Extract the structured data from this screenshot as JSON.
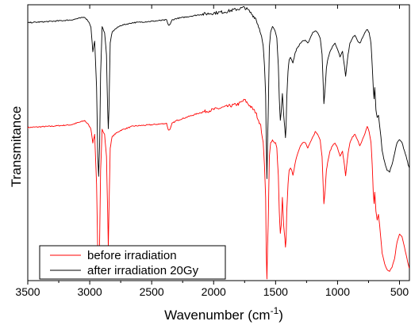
{
  "chart_data": {
    "type": "line",
    "title": "",
    "xlabel": "Wavenumber (cm",
    "xlabel_sup": "-1",
    "xlabel_close": ")",
    "ylabel": "Transmitance",
    "xlim": [
      3500,
      420
    ],
    "x_reversed": true,
    "ylim": [
      0,
      1
    ],
    "y_ticks_shown": false,
    "x_ticks": [
      "3500",
      "3000",
      "2500",
      "2000",
      "1500",
      "1000",
      "500"
    ],
    "x_tick_values": [
      3500,
      3000,
      2500,
      2000,
      1500,
      1000,
      500
    ],
    "grid": false,
    "legend_position": "bottom-left",
    "series": [
      {
        "name": "before irradiation",
        "color": "#ff0000",
        "x": [
          3500,
          3300,
          3150,
          3040,
          3010,
          2990,
          2975,
          2960,
          2945,
          2935,
          2928,
          2920,
          2912,
          2900,
          2880,
          2865,
          2855,
          2850,
          2845,
          2835,
          2820,
          2800,
          2750,
          2650,
          2500,
          2380,
          2365,
          2350,
          2335,
          2300,
          2100,
          1900,
          1800,
          1750,
          1720,
          1700,
          1660,
          1620,
          1600,
          1590,
          1580,
          1575,
          1570,
          1565,
          1560,
          1555,
          1550,
          1540,
          1525,
          1510,
          1500,
          1490,
          1478,
          1470,
          1462,
          1455,
          1445,
          1435,
          1425,
          1420,
          1415,
          1410,
          1400,
          1390,
          1380,
          1370,
          1360,
          1345,
          1330,
          1300,
          1280,
          1260,
          1240,
          1220,
          1200,
          1180,
          1160,
          1140,
          1125,
          1115,
          1110,
          1100,
          1090,
          1075,
          1060,
          1040,
          1020,
          1000,
          980,
          960,
          945,
          935,
          925,
          915,
          900,
          880,
          860,
          840,
          820,
          800,
          780,
          760,
          745,
          730,
          720,
          712,
          705,
          700,
          690,
          680,
          670,
          660,
          650,
          640,
          620,
          600,
          580,
          560,
          540,
          520,
          500,
          480,
          460,
          440,
          430,
          422
        ],
        "y": [
          0.555,
          0.56,
          0.565,
          0.58,
          0.565,
          0.55,
          0.5,
          0.53,
          0.35,
          0.1,
          0.02,
          0.15,
          0.4,
          0.55,
          0.53,
          0.45,
          0.25,
          0.12,
          0.25,
          0.48,
          0.52,
          0.53,
          0.545,
          0.56,
          0.565,
          0.57,
          0.545,
          0.55,
          0.57,
          0.58,
          0.61,
          0.63,
          0.64,
          0.655,
          0.64,
          0.63,
          0.61,
          0.56,
          0.5,
          0.42,
          0.3,
          0.1,
          0.005,
          0.12,
          0.2,
          0.32,
          0.45,
          0.5,
          0.51,
          0.5,
          0.5,
          0.48,
          0.38,
          0.25,
          0.17,
          0.2,
          0.3,
          0.2,
          0.15,
          0.12,
          0.15,
          0.25,
          0.35,
          0.4,
          0.41,
          0.4,
          0.38,
          0.42,
          0.45,
          0.49,
          0.5,
          0.5,
          0.48,
          0.5,
          0.52,
          0.54,
          0.53,
          0.51,
          0.45,
          0.33,
          0.28,
          0.33,
          0.4,
          0.44,
          0.47,
          0.49,
          0.5,
          0.48,
          0.45,
          0.47,
          0.42,
          0.38,
          0.42,
          0.46,
          0.5,
          0.52,
          0.53,
          0.51,
          0.49,
          0.51,
          0.53,
          0.56,
          0.54,
          0.5,
          0.42,
          0.32,
          0.28,
          0.32,
          0.25,
          0.22,
          0.24,
          0.2,
          0.15,
          0.1,
          0.06,
          0.04,
          0.035,
          0.05,
          0.08,
          0.14,
          0.17,
          0.16,
          0.12,
          0.08,
          0.06,
          0.045
        ]
      },
      {
        "name": "after irradiation 20Gy",
        "color": "#000000",
        "x": [
          3500,
          3300,
          3150,
          3040,
          3010,
          2990,
          2975,
          2960,
          2945,
          2935,
          2928,
          2920,
          2912,
          2900,
          2880,
          2865,
          2855,
          2850,
          2845,
          2835,
          2820,
          2800,
          2750,
          2650,
          2500,
          2380,
          2365,
          2350,
          2335,
          2300,
          2100,
          1900,
          1800,
          1750,
          1720,
          1700,
          1660,
          1620,
          1600,
          1590,
          1580,
          1575,
          1570,
          1565,
          1560,
          1555,
          1550,
          1540,
          1525,
          1510,
          1500,
          1490,
          1478,
          1470,
          1462,
          1455,
          1445,
          1435,
          1425,
          1420,
          1415,
          1410,
          1400,
          1390,
          1380,
          1370,
          1360,
          1345,
          1330,
          1300,
          1280,
          1260,
          1240,
          1220,
          1200,
          1180,
          1160,
          1140,
          1125,
          1115,
          1110,
          1100,
          1090,
          1075,
          1060,
          1040,
          1020,
          1000,
          980,
          960,
          945,
          935,
          925,
          915,
          900,
          880,
          860,
          840,
          820,
          800,
          780,
          760,
          745,
          730,
          720,
          712,
          705,
          700,
          690,
          680,
          670,
          660,
          650,
          640,
          620,
          600,
          580,
          560,
          540,
          520,
          500,
          480,
          460,
          440,
          430,
          422
        ],
        "y": [
          0.935,
          0.94,
          0.945,
          0.955,
          0.94,
          0.92,
          0.83,
          0.87,
          0.7,
          0.45,
          0.38,
          0.5,
          0.75,
          0.92,
          0.9,
          0.82,
          0.62,
          0.55,
          0.62,
          0.86,
          0.9,
          0.91,
          0.925,
          0.935,
          0.94,
          0.945,
          0.925,
          0.93,
          0.945,
          0.95,
          0.965,
          0.975,
          0.985,
          0.99,
          0.98,
          0.97,
          0.95,
          0.9,
          0.85,
          0.78,
          0.67,
          0.5,
          0.37,
          0.5,
          0.6,
          0.72,
          0.85,
          0.9,
          0.92,
          0.91,
          0.9,
          0.88,
          0.78,
          0.66,
          0.58,
          0.61,
          0.68,
          0.6,
          0.55,
          0.52,
          0.56,
          0.66,
          0.76,
          0.8,
          0.81,
          0.8,
          0.79,
          0.82,
          0.84,
          0.86,
          0.87,
          0.87,
          0.86,
          0.88,
          0.9,
          0.905,
          0.9,
          0.88,
          0.82,
          0.7,
          0.64,
          0.7,
          0.77,
          0.81,
          0.83,
          0.85,
          0.86,
          0.84,
          0.81,
          0.83,
          0.78,
          0.74,
          0.78,
          0.82,
          0.86,
          0.88,
          0.89,
          0.87,
          0.86,
          0.88,
          0.9,
          0.91,
          0.9,
          0.86,
          0.78,
          0.7,
          0.66,
          0.7,
          0.62,
          0.59,
          0.6,
          0.56,
          0.52,
          0.47,
          0.43,
          0.4,
          0.395,
          0.42,
          0.46,
          0.5,
          0.51,
          0.5,
          0.47,
          0.44,
          0.42,
          0.41
        ]
      }
    ]
  }
}
